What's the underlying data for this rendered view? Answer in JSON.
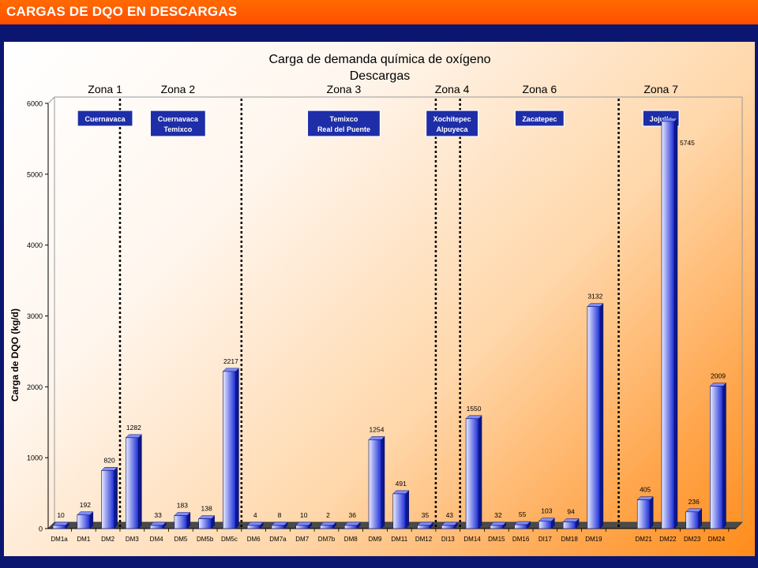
{
  "header": {
    "title": "CARGAS DE DQO EN DESCARGAS"
  },
  "colors": {
    "header_bar": "#ff5a00",
    "frame": "#0b1670",
    "bar_light": "#e8ebff",
    "bar_dark": "#1a2bd6",
    "label_box": "#1e2ea8"
  },
  "chart_data": {
    "type": "bar",
    "title": "Carga de demanda química de oxígeno",
    "subtitle": "Descargas",
    "ylabel": "Carga de DQO (kg/d)",
    "xlabel": "",
    "ylim": [
      0,
      6000
    ],
    "yticks": [
      "0",
      "1000",
      "2000",
      "3000",
      "4000",
      "5000",
      "6000"
    ],
    "grid": false,
    "legend": "none",
    "categories": [
      "DM1a",
      "DM1",
      "DM2",
      "DM3",
      "DM4",
      "DM5",
      "DM5b",
      "DM5c",
      "DM6",
      "DM7a",
      "DM7",
      "DM7b",
      "DM8",
      "DM9",
      "DM11",
      "DM12",
      "DI13",
      "DM14",
      "DM15",
      "DM16",
      "DI17",
      "DM18",
      "DM19",
      "DM21",
      "DM22",
      "DM23",
      "DM24"
    ],
    "values": [
      10,
      192,
      820,
      1282,
      33,
      183,
      138,
      2217,
      4,
      8,
      10,
      2,
      36,
      1254,
      491,
      35,
      43,
      1550,
      32,
      55,
      103,
      94,
      3132,
      405,
      5745,
      236,
      2009
    ],
    "value_labels": [
      "10",
      "192",
      "820",
      "1282",
      "33",
      "183",
      "138",
      "2217",
      "4",
      "8",
      "10",
      "2",
      "36",
      "1254",
      "491",
      "35",
      "43",
      "1550",
      "32",
      "55",
      "103",
      "94",
      "3132",
      "405",
      "5745",
      "236",
      "2009"
    ],
    "zones": [
      {
        "name": "Zona 1",
        "localities": [
          "Cuernavaca"
        ]
      },
      {
        "name": "Zona 2",
        "localities": [
          "Cuernavaca",
          "Temixco"
        ]
      },
      {
        "name": "Zona 3",
        "localities": [
          "Temixco",
          "Real del Puente"
        ]
      },
      {
        "name": "Zona 4",
        "localities": [
          "Xochitepec",
          "Alpuyeca"
        ]
      },
      {
        "name": "Zona 6",
        "localities": [
          "Zacatepec"
        ]
      },
      {
        "name": "Zona 7",
        "localities": [
          "Jojutla"
        ]
      }
    ]
  }
}
